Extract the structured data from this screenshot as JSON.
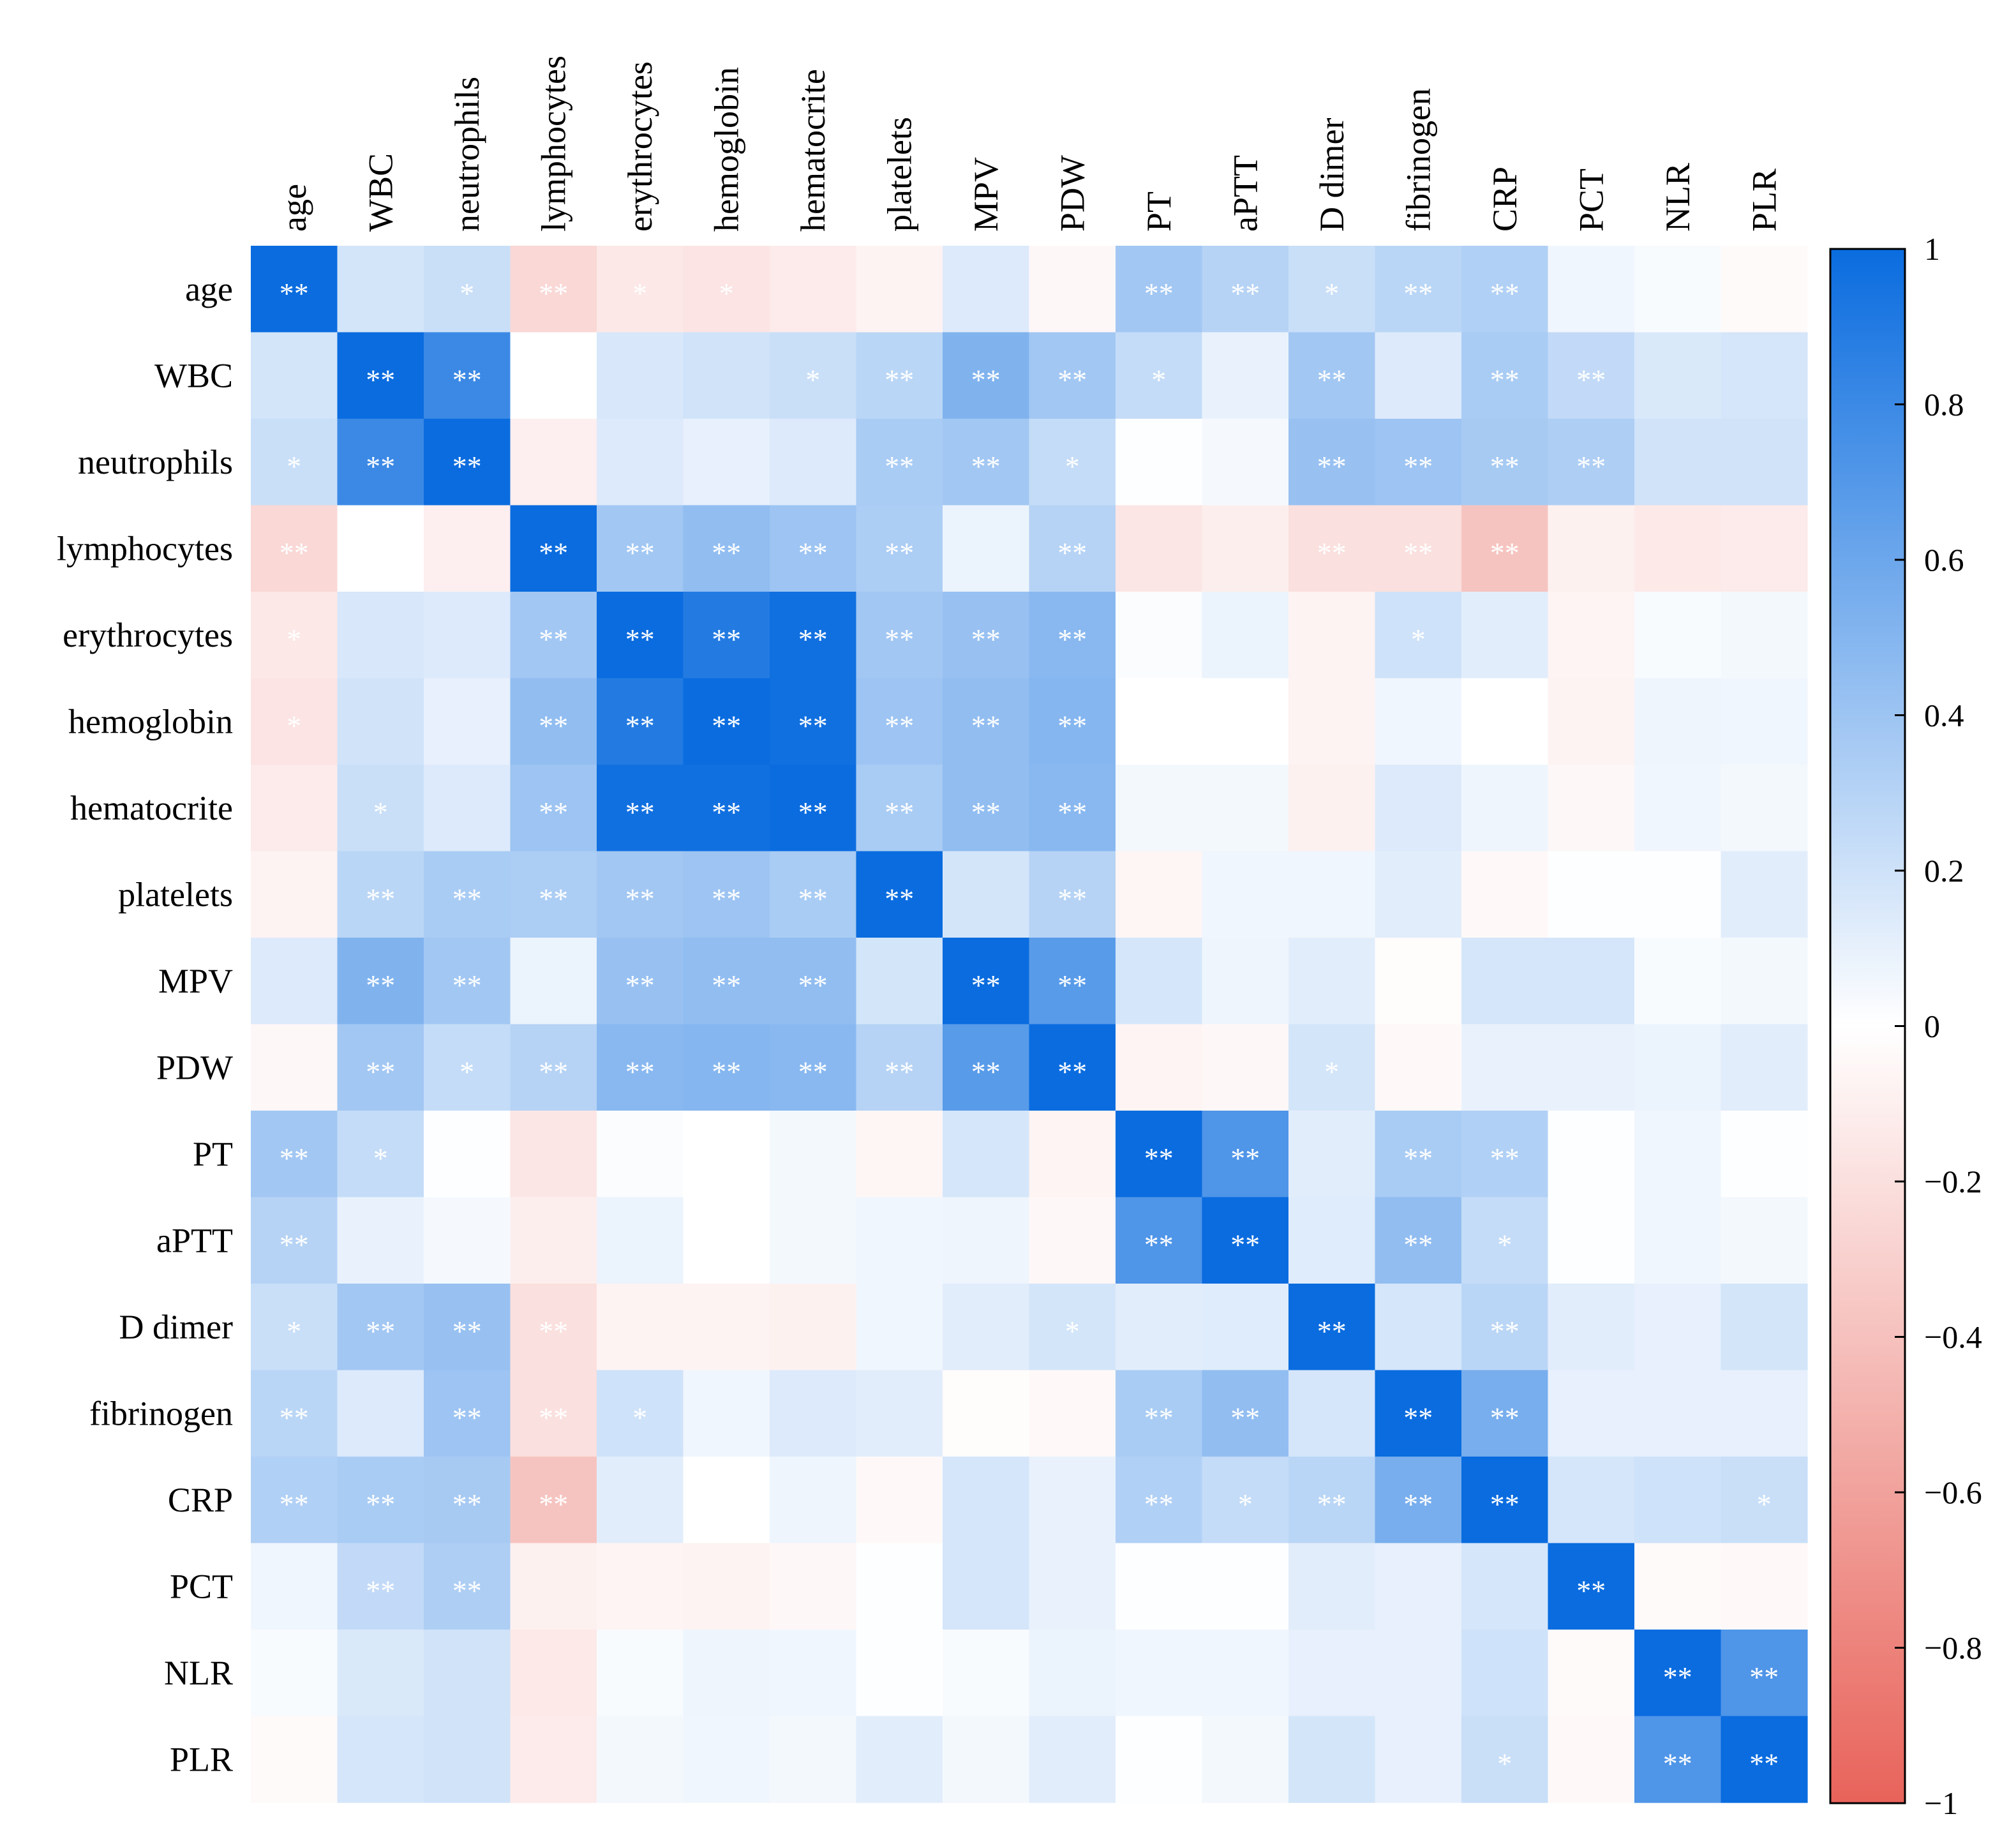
{
  "chart_data": {
    "type": "heatmap",
    "title": "",
    "xlabel": "",
    "ylabel": "",
    "variables": [
      "age",
      "WBC",
      "neutrophils",
      "lymphocytes",
      "erythrocytes",
      "hemoglobin",
      "hematocrite",
      "platelets",
      "MPV",
      "PDW",
      "PT",
      "aPTT",
      "D dimer",
      "fibrinogen",
      "CRP",
      "PCT",
      "NLR",
      "PLR"
    ],
    "matrix": [
      [
        1.0,
        0.18,
        0.22,
        -0.25,
        -0.15,
        -0.17,
        -0.13,
        -0.08,
        0.14,
        -0.05,
        0.38,
        0.3,
        0.22,
        0.28,
        0.32,
        0.06,
        0.03,
        -0.03
      ],
      [
        0.18,
        1.0,
        0.8,
        0.0,
        0.16,
        0.19,
        0.22,
        0.28,
        0.52,
        0.38,
        0.24,
        0.09,
        0.38,
        0.14,
        0.35,
        0.25,
        0.15,
        0.17
      ],
      [
        0.22,
        0.8,
        1.0,
        -0.1,
        0.14,
        0.1,
        0.14,
        0.35,
        0.38,
        0.24,
        0.01,
        0.04,
        0.42,
        0.4,
        0.36,
        0.33,
        0.19,
        0.19
      ],
      [
        -0.25,
        0.0,
        -0.1,
        1.0,
        0.38,
        0.45,
        0.4,
        0.34,
        0.08,
        0.3,
        -0.16,
        -0.11,
        -0.2,
        -0.2,
        -0.38,
        -0.09,
        -0.14,
        -0.13
      ],
      [
        -0.15,
        0.16,
        0.14,
        0.38,
        1.0,
        0.9,
        0.97,
        0.38,
        0.42,
        0.48,
        0.02,
        0.08,
        -0.08,
        0.2,
        0.12,
        -0.07,
        0.03,
        0.05
      ],
      [
        -0.17,
        0.19,
        0.1,
        0.45,
        0.9,
        1.0,
        0.97,
        0.4,
        0.45,
        0.5,
        0.0,
        0.0,
        -0.08,
        0.06,
        0.0,
        -0.08,
        0.07,
        0.06
      ],
      [
        -0.13,
        0.22,
        0.14,
        0.4,
        0.97,
        0.97,
        1.0,
        0.35,
        0.45,
        0.48,
        0.05,
        0.05,
        -0.09,
        0.14,
        0.07,
        -0.05,
        0.06,
        0.05
      ],
      [
        -0.08,
        0.28,
        0.35,
        0.34,
        0.38,
        0.4,
        0.35,
        1.0,
        0.18,
        0.3,
        -0.06,
        0.06,
        0.06,
        0.12,
        -0.04,
        0.01,
        0.01,
        0.12
      ],
      [
        0.14,
        0.52,
        0.38,
        0.08,
        0.42,
        0.45,
        0.45,
        0.18,
        1.0,
        0.68,
        0.17,
        0.07,
        0.12,
        -0.02,
        0.17,
        0.17,
        0.03,
        0.05
      ],
      [
        -0.05,
        0.38,
        0.24,
        0.3,
        0.48,
        0.5,
        0.48,
        0.3,
        0.68,
        1.0,
        -0.07,
        -0.05,
        0.18,
        -0.04,
        0.09,
        0.09,
        0.08,
        0.12
      ],
      [
        0.38,
        0.24,
        0.01,
        -0.16,
        0.02,
        0.0,
        0.05,
        -0.06,
        0.17,
        -0.07,
        1.0,
        0.72,
        0.12,
        0.35,
        0.32,
        0.01,
        0.06,
        0.01
      ],
      [
        0.3,
        0.09,
        0.04,
        -0.11,
        0.08,
        0.0,
        0.05,
        0.06,
        0.07,
        -0.05,
        0.72,
        1.0,
        0.13,
        0.45,
        0.24,
        0.01,
        0.06,
        0.05
      ],
      [
        0.22,
        0.38,
        0.42,
        -0.2,
        -0.08,
        -0.08,
        -0.09,
        0.06,
        0.12,
        0.18,
        0.12,
        0.13,
        1.0,
        0.17,
        0.28,
        0.12,
        0.1,
        0.18
      ],
      [
        0.28,
        0.14,
        0.4,
        -0.2,
        0.2,
        0.06,
        0.14,
        0.12,
        -0.02,
        -0.04,
        0.35,
        0.45,
        0.17,
        1.0,
        0.55,
        0.1,
        0.1,
        0.1
      ],
      [
        0.32,
        0.35,
        0.36,
        -0.38,
        0.12,
        0.0,
        0.07,
        -0.04,
        0.17,
        0.09,
        0.32,
        0.24,
        0.28,
        0.55,
        1.0,
        0.17,
        0.2,
        0.22
      ],
      [
        0.06,
        0.25,
        0.33,
        -0.09,
        -0.07,
        -0.08,
        -0.05,
        0.01,
        0.17,
        0.09,
        0.01,
        0.01,
        0.12,
        0.1,
        0.17,
        1.0,
        -0.03,
        -0.04
      ],
      [
        0.03,
        0.15,
        0.19,
        -0.14,
        0.03,
        0.07,
        0.06,
        0.01,
        0.03,
        0.08,
        0.06,
        0.06,
        0.1,
        0.1,
        0.2,
        -0.03,
        1.0,
        0.72
      ],
      [
        -0.03,
        0.17,
        0.19,
        -0.13,
        0.05,
        0.06,
        0.05,
        0.12,
        0.05,
        0.12,
        0.01,
        0.05,
        0.18,
        0.1,
        0.22,
        -0.04,
        0.72,
        1.0
      ]
    ],
    "significance": [
      [
        "**",
        "",
        "*",
        "**",
        "*",
        "*",
        "",
        "",
        "",
        "",
        "**",
        "**",
        "*",
        "**",
        "**",
        "",
        "",
        ""
      ],
      [
        "",
        "**",
        "**",
        "",
        "",
        "",
        "*",
        "**",
        "**",
        "**",
        "*",
        "",
        "**",
        "",
        "**",
        "**",
        "",
        ""
      ],
      [
        "*",
        "**",
        "**",
        "",
        "",
        "",
        "",
        "**",
        "**",
        "*",
        "",
        "",
        "**",
        "**",
        "**",
        "**",
        "",
        ""
      ],
      [
        "**",
        "",
        "",
        "**",
        "**",
        "**",
        "**",
        "**",
        "",
        "**",
        "",
        "",
        "**",
        "**",
        "**",
        "",
        "",
        ""
      ],
      [
        "*",
        "",
        "",
        "**",
        "**",
        "**",
        "**",
        "**",
        "**",
        "**",
        "",
        "",
        "",
        "*",
        "",
        "",
        "",
        ""
      ],
      [
        "*",
        "",
        "",
        "**",
        "**",
        "**",
        "**",
        "**",
        "**",
        "**",
        "",
        "",
        "",
        "",
        "",
        "",
        "",
        ""
      ],
      [
        "",
        "*",
        "",
        "**",
        "**",
        "**",
        "**",
        "**",
        "**",
        "**",
        "",
        "",
        "",
        "",
        "",
        "",
        "",
        ""
      ],
      [
        "",
        "**",
        "**",
        "**",
        "**",
        "**",
        "**",
        "**",
        "",
        "**",
        "",
        "",
        "",
        "",
        "",
        "",
        "",
        ""
      ],
      [
        "",
        "**",
        "**",
        "",
        "**",
        "**",
        "**",
        "",
        "**",
        "**",
        "",
        "",
        "",
        "",
        "",
        "",
        "",
        ""
      ],
      [
        "",
        "**",
        "*",
        "**",
        "**",
        "**",
        "**",
        "**",
        "**",
        "**",
        "",
        "",
        "*",
        "",
        "",
        "",
        "",
        ""
      ],
      [
        "**",
        "*",
        "",
        "",
        "",
        "",
        "",
        "",
        "",
        "",
        "**",
        "**",
        "",
        "**",
        "**",
        "",
        "",
        ""
      ],
      [
        "**",
        "",
        "",
        "",
        "",
        "",
        "",
        "",
        "",
        "",
        "**",
        "**",
        "",
        "**",
        "*",
        "",
        "",
        ""
      ],
      [
        "*",
        "**",
        "**",
        "**",
        "",
        "",
        "",
        "",
        "",
        "*",
        "",
        "",
        "**",
        "",
        "**",
        "",
        "",
        ""
      ],
      [
        "**",
        "",
        "**",
        "**",
        "*",
        "",
        "",
        "",
        "",
        "",
        "**",
        "**",
        "",
        "**",
        "**",
        "",
        "",
        ""
      ],
      [
        "**",
        "**",
        "**",
        "**",
        "",
        "",
        "",
        "",
        "",
        "",
        "**",
        "*",
        "**",
        "**",
        "**",
        "",
        "",
        "*"
      ],
      [
        "",
        "**",
        "**",
        "",
        "",
        "",
        "",
        "",
        "",
        "",
        "",
        "",
        "",
        "",
        "",
        "**",
        "",
        ""
      ],
      [
        "",
        "",
        "",
        "",
        "",
        "",
        "",
        "",
        "",
        "",
        "",
        "",
        "",
        "",
        "",
        "",
        "**",
        "**"
      ],
      [
        "",
        "",
        "",
        "",
        "",
        "",
        "",
        "",
        "",
        "",
        "",
        "",
        "",
        "",
        "*",
        "",
        "**",
        "**"
      ]
    ],
    "colorbar": {
      "min": -1,
      "max": 1,
      "ticks": [
        1,
        0.8,
        0.6,
        0.4,
        0.2,
        0,
        -0.2,
        -0.4,
        -0.6,
        -0.8,
        -1
      ],
      "tick_labels": [
        "1",
        "0.8",
        "0.6",
        "0.4",
        "0.2",
        "0",
        "−0.2",
        "−0.4",
        "−0.6",
        "−0.8",
        "−1"
      ],
      "negative_color": "#e8635a",
      "zero_color": "#ffffff",
      "positive_color": "#0a6cdf"
    },
    "legend_placement": "right",
    "grid": false
  }
}
